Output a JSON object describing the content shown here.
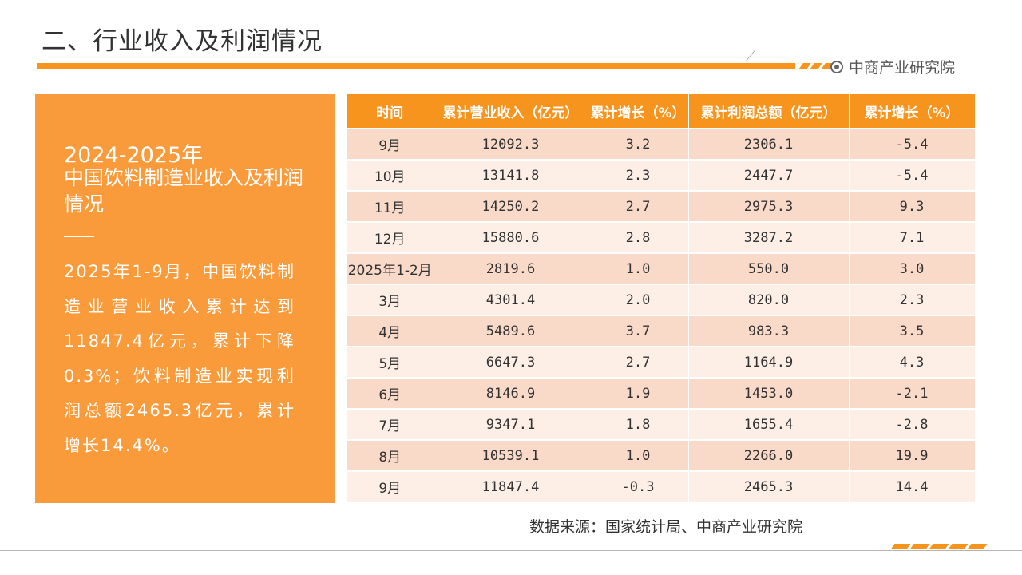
{
  "page": {
    "title": "二、行业收入及利润情况",
    "brand": "中商产业研究院",
    "accent_color": "#f7941d",
    "panel_color": "#f99a3b"
  },
  "panel": {
    "year": "2024-2025年",
    "heading": "中国饮料制造业收入及利润情况",
    "text": "2025年1-9月，中国饮料制造业营业收入累计达到11847.4亿元，累计下降0.3%；饮料制造业实现利润总额2465.3亿元，累计增长14.4%。"
  },
  "table": {
    "headers": [
      "时间",
      "累计营业收入（亿元）",
      "累计增长（%）",
      "累计利润总额（亿元）",
      "累计增长（%）"
    ],
    "rows": [
      [
        "9月",
        "12092.3",
        "3.2",
        "2306.1",
        "-5.4"
      ],
      [
        "10月",
        "13141.8",
        "2.3",
        "2447.7",
        "-5.4"
      ],
      [
        "11月",
        "14250.2",
        "2.7",
        "2975.3",
        "9.3"
      ],
      [
        "12月",
        "15880.6",
        "2.8",
        "3287.2",
        "7.1"
      ],
      [
        "2025年1-2月",
        "2819.6",
        "1.0",
        "550.0",
        "3.0"
      ],
      [
        "3月",
        "4301.4",
        "2.0",
        "820.0",
        "2.3"
      ],
      [
        "4月",
        "5489.6",
        "3.7",
        "983.3",
        "3.5"
      ],
      [
        "5月",
        "6647.3",
        "2.7",
        "1164.9",
        "4.3"
      ],
      [
        "6月",
        "8146.9",
        "1.9",
        "1453.0",
        "-2.1"
      ],
      [
        "7月",
        "9347.1",
        "1.8",
        "1655.4",
        "-2.8"
      ],
      [
        "8月",
        "10539.1",
        "1.0",
        "2266.0",
        "19.9"
      ],
      [
        "9月",
        "11847.4",
        "-0.3",
        "2465.3",
        "14.4"
      ]
    ]
  },
  "source": "数据来源：国家统计局、中商产业研究院"
}
